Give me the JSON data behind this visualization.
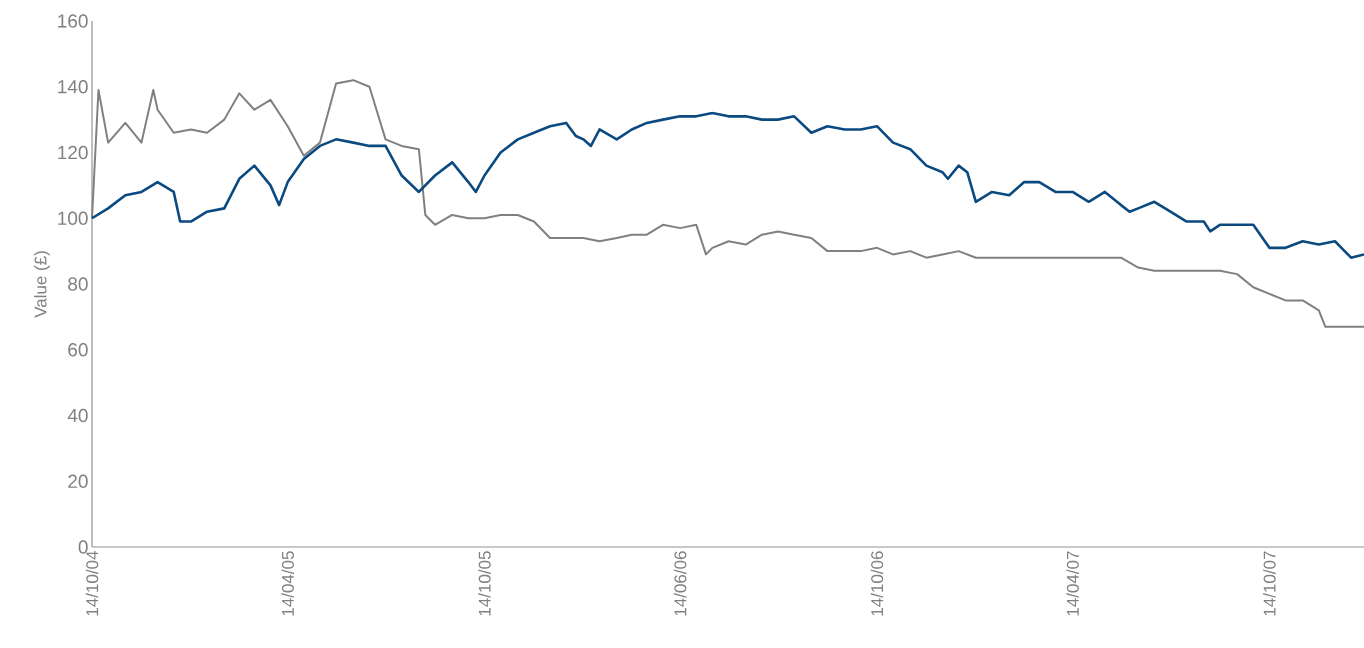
{
  "chart_data": {
    "type": "line",
    "ylabel": "Value (£)",
    "xlim": [
      "2004-10-14",
      "2008-01-10"
    ],
    "xticks": [
      {
        "value": "2004-10-14",
        "label": "14/10/04"
      },
      {
        "value": "2005-04-14",
        "label": "14/04/05"
      },
      {
        "value": "2005-10-14",
        "label": "14/10/05"
      },
      {
        "value": "2006-04-14",
        "label": "14/06/06"
      },
      {
        "value": "2006-10-14",
        "label": "14/10/06"
      },
      {
        "value": "2007-04-14",
        "label": "14/04/07"
      },
      {
        "value": "2007-10-14",
        "label": "14/10/07"
      }
    ],
    "ylim": [
      0,
      160
    ],
    "yticks": [
      0,
      20,
      40,
      60,
      80,
      100,
      120,
      140,
      160
    ],
    "series": [
      {
        "color": "#808080",
        "x": [
          "2004-10-14",
          "2004-10-20",
          "2004-10-29",
          "2004-11-14",
          "2004-11-29",
          "2004-12-10",
          "2004-12-14",
          "2004-12-29",
          "2005-01-14",
          "2005-01-29",
          "2005-02-14",
          "2005-02-28",
          "2005-03-14",
          "2005-03-29",
          "2005-04-14",
          "2005-04-29",
          "2005-05-14",
          "2005-05-29",
          "2005-06-14",
          "2005-06-29",
          "2005-07-14",
          "2005-07-29",
          "2005-08-14",
          "2005-08-20",
          "2005-08-29",
          "2005-09-14",
          "2005-09-29",
          "2005-10-14",
          "2005-10-29",
          "2005-11-14",
          "2005-11-29",
          "2005-12-14",
          "2005-12-29",
          "2006-01-14",
          "2006-01-29",
          "2006-02-14",
          "2006-02-28",
          "2006-03-14",
          "2006-03-29",
          "2006-04-14",
          "2006-04-29",
          "2006-05-08",
          "2006-05-14",
          "2006-05-29",
          "2006-06-14",
          "2006-06-29",
          "2006-07-14",
          "2006-07-29",
          "2006-08-14",
          "2006-08-29",
          "2006-09-14",
          "2006-09-29",
          "2006-10-14",
          "2006-10-29",
          "2006-11-14",
          "2006-11-29",
          "2006-12-14",
          "2006-12-29",
          "2007-01-14",
          "2007-01-29",
          "2007-02-14",
          "2007-02-28",
          "2007-03-14",
          "2007-03-29",
          "2007-04-14",
          "2007-04-29",
          "2007-05-14",
          "2007-05-29",
          "2007-06-14",
          "2007-06-29",
          "2007-07-14",
          "2007-07-29",
          "2007-08-14",
          "2007-08-29",
          "2007-09-14",
          "2007-09-29",
          "2007-10-14",
          "2007-10-29",
          "2007-11-14",
          "2007-11-29",
          "2007-12-05",
          "2007-12-14",
          "2007-12-29",
          "2008-01-10"
        ],
        "values": [
          100,
          139,
          123,
          129,
          123,
          139,
          133,
          126,
          127,
          126,
          130,
          138,
          133,
          136,
          128,
          119,
          123,
          141,
          142,
          140,
          124,
          122,
          121,
          101,
          98,
          101,
          100,
          100,
          101,
          101,
          99,
          94,
          94,
          94,
          93,
          94,
          95,
          95,
          98,
          97,
          98,
          89,
          91,
          93,
          92,
          95,
          96,
          95,
          94,
          90,
          90,
          90,
          91,
          89,
          90,
          88,
          89,
          90,
          88,
          88,
          88,
          88,
          88,
          88,
          88,
          88,
          88,
          88,
          85,
          84,
          84,
          84,
          84,
          84,
          83,
          79,
          77,
          75,
          75,
          72,
          67,
          67,
          67,
          67
        ]
      },
      {
        "color": "#0a4a80",
        "x": [
          "2004-10-14",
          "2004-10-29",
          "2004-11-14",
          "2004-11-29",
          "2004-12-14",
          "2004-12-29",
          "2005-01-04",
          "2005-01-14",
          "2005-01-29",
          "2005-02-14",
          "2005-02-28",
          "2005-03-14",
          "2005-03-29",
          "2005-04-06",
          "2005-04-14",
          "2005-04-29",
          "2005-05-14",
          "2005-05-29",
          "2005-06-14",
          "2005-06-29",
          "2005-07-14",
          "2005-07-29",
          "2005-08-14",
          "2005-08-29",
          "2005-09-14",
          "2005-09-29",
          "2005-10-06",
          "2005-10-14",
          "2005-10-29",
          "2005-11-14",
          "2005-11-29",
          "2005-12-14",
          "2005-12-29",
          "2006-01-07",
          "2006-01-14",
          "2006-01-21",
          "2006-01-29",
          "2006-02-14",
          "2006-02-28",
          "2006-03-14",
          "2006-03-29",
          "2006-04-14",
          "2006-04-29",
          "2006-05-14",
          "2006-05-29",
          "2006-06-14",
          "2006-06-29",
          "2006-07-14",
          "2006-07-29",
          "2006-08-14",
          "2006-08-29",
          "2006-09-14",
          "2006-09-29",
          "2006-10-14",
          "2006-10-29",
          "2006-11-14",
          "2006-11-29",
          "2006-12-14",
          "2006-12-19",
          "2006-12-29",
          "2007-01-06",
          "2007-01-14",
          "2007-01-29",
          "2007-02-14",
          "2007-02-28",
          "2007-03-14",
          "2007-03-29",
          "2007-04-14",
          "2007-04-29",
          "2007-05-14",
          "2007-05-29",
          "2007-06-06",
          "2007-06-14",
          "2007-06-29",
          "2007-07-14",
          "2007-07-29",
          "2007-08-14",
          "2007-08-20",
          "2007-08-29",
          "2007-09-14",
          "2007-09-29",
          "2007-10-14",
          "2007-10-29",
          "2007-11-14",
          "2007-11-29",
          "2007-12-14",
          "2007-12-23",
          "2007-12-29",
          "2008-01-10"
        ],
        "values": [
          100,
          103,
          107,
          108,
          111,
          108,
          99,
          99,
          102,
          103,
          112,
          116,
          110,
          104,
          111,
          118,
          122,
          124,
          123,
          122,
          122,
          113,
          108,
          113,
          117,
          111,
          108,
          113,
          120,
          124,
          126,
          128,
          129,
          125,
          124,
          122,
          127,
          124,
          127,
          129,
          130,
          131,
          131,
          132,
          131,
          131,
          130,
          130,
          131,
          126,
          128,
          127,
          127,
          128,
          123,
          121,
          116,
          114,
          112,
          116,
          114,
          105,
          108,
          107,
          111,
          111,
          108,
          108,
          105,
          108,
          104,
          102,
          103,
          105,
          102,
          99,
          99,
          96,
          98,
          98,
          98,
          91,
          91,
          93,
          92,
          93,
          90,
          88,
          89
        ]
      }
    ]
  }
}
